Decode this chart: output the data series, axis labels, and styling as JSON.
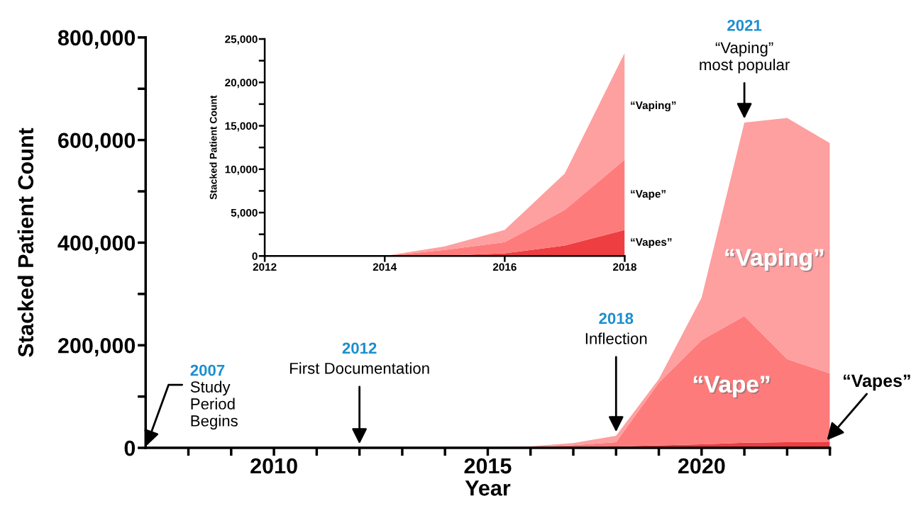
{
  "chart_data": [
    {
      "type": "area",
      "stacked": true,
      "xlabel": "Year",
      "ylabel": "Stacked Patient Count",
      "legend": false,
      "grid": false,
      "x": [
        2007,
        2008,
        2009,
        2010,
        2011,
        2012,
        2013,
        2014,
        2015,
        2016,
        2017,
        2018,
        2019,
        2020,
        2021,
        2022,
        2023
      ],
      "series": [
        {
          "name": "“Vapes”",
          "color": "#ee3e42",
          "values": [
            0,
            0,
            0,
            0,
            0,
            0,
            0,
            0,
            50,
            300,
            1200,
            3000,
            5000,
            7000,
            10000,
            11000,
            12000
          ]
        },
        {
          "name": "“Vape”",
          "color": "#fe7b7c",
          "values": [
            0,
            0,
            0,
            0,
            0,
            0,
            0,
            0,
            650,
            1300,
            4100,
            8100,
            122000,
            203000,
            247000,
            162000,
            133000
          ]
        },
        {
          "name": "“Vaping”",
          "color": "#fe9fa0",
          "values": [
            0,
            0,
            0,
            0,
            0,
            0,
            0,
            0,
            400,
            1400,
            4200,
            12300,
            7000,
            83000,
            377000,
            470000,
            449000
          ]
        }
      ],
      "xlim": [
        2007,
        2023
      ],
      "xticks": [
        {
          "value": 2008,
          "label": null
        },
        {
          "value": 2009,
          "label": null
        },
        2010,
        {
          "value": 2011,
          "label": null
        },
        {
          "value": 2012,
          "label": null
        },
        {
          "value": 2013,
          "label": null
        },
        {
          "value": 2014,
          "label": null
        },
        2015,
        {
          "value": 2016,
          "label": null
        },
        {
          "value": 2017,
          "label": null
        },
        {
          "value": 2018,
          "label": null
        },
        {
          "value": 2019,
          "label": null
        },
        2020,
        {
          "value": 2021,
          "label": null
        },
        {
          "value": 2022,
          "label": null
        },
        {
          "value": 2023,
          "label": null
        }
      ],
      "ylim": [
        0,
        800000
      ],
      "yticks": [
        0,
        {
          "value": 100000,
          "label": null
        },
        {
          "value": 200000,
          "label": "200,000"
        },
        {
          "value": 300000,
          "label": null
        },
        {
          "value": 400000,
          "label": "400,000"
        },
        {
          "value": 500000,
          "label": null
        },
        {
          "value": 600000,
          "label": "600,000"
        },
        {
          "value": 700000,
          "label": null
        },
        {
          "value": 800000,
          "label": "800,000"
        }
      ],
      "annotations": [
        "2007",
        {
          "text": "Study\nPeriod\nBegins",
          "x": 2007,
          "y": 0
        },
        "2012",
        {
          "text": "First Documentation",
          "x": 2012,
          "y": 0
        },
        "2018",
        {
          "text": "Inflection",
          "x": 2018,
          "y": 23400
        },
        "2021",
        {
          "text": "“Vaping”\nmost popular",
          "x": 2021,
          "y": 634000
        }
      ]
    },
    {
      "type": "area",
      "stacked": true,
      "ylabel": "Stacked Patient Count",
      "legend": false,
      "grid": false,
      "x": [
        2012,
        2013,
        2014,
        2015,
        2016,
        2017,
        2018
      ],
      "series": [
        {
          "name": "“Vapes”",
          "color": "#ee3e42",
          "values": [
            0,
            0,
            0,
            50,
            300,
            1200,
            3000
          ]
        },
        {
          "name": "“Vape”",
          "color": "#fe7b7c",
          "values": [
            0,
            0,
            0,
            650,
            1300,
            4100,
            8100
          ]
        },
        {
          "name": "“Vaping”",
          "color": "#fe9fa0",
          "values": [
            0,
            0,
            0,
            400,
            1400,
            4200,
            12300
          ]
        }
      ],
      "xlim": [
        2012,
        2018
      ],
      "xticks": [
        2012,
        2014,
        2016,
        2018
      ],
      "ylim": [
        0,
        25000
      ],
      "yticks": [
        0,
        {
          "value": 2500,
          "label": null
        },
        {
          "value": 5000,
          "label": "5,000"
        },
        {
          "value": 7500,
          "label": null
        },
        {
          "value": 10000,
          "label": "10,000"
        },
        {
          "value": 12500,
          "label": null
        },
        {
          "value": 15000,
          "label": "15,000"
        },
        {
          "value": 17500,
          "label": null
        },
        {
          "value": 20000,
          "label": "20,000"
        },
        {
          "value": 22500,
          "label": null
        },
        {
          "value": 25000,
          "label": "25,000"
        }
      ]
    }
  ]
}
